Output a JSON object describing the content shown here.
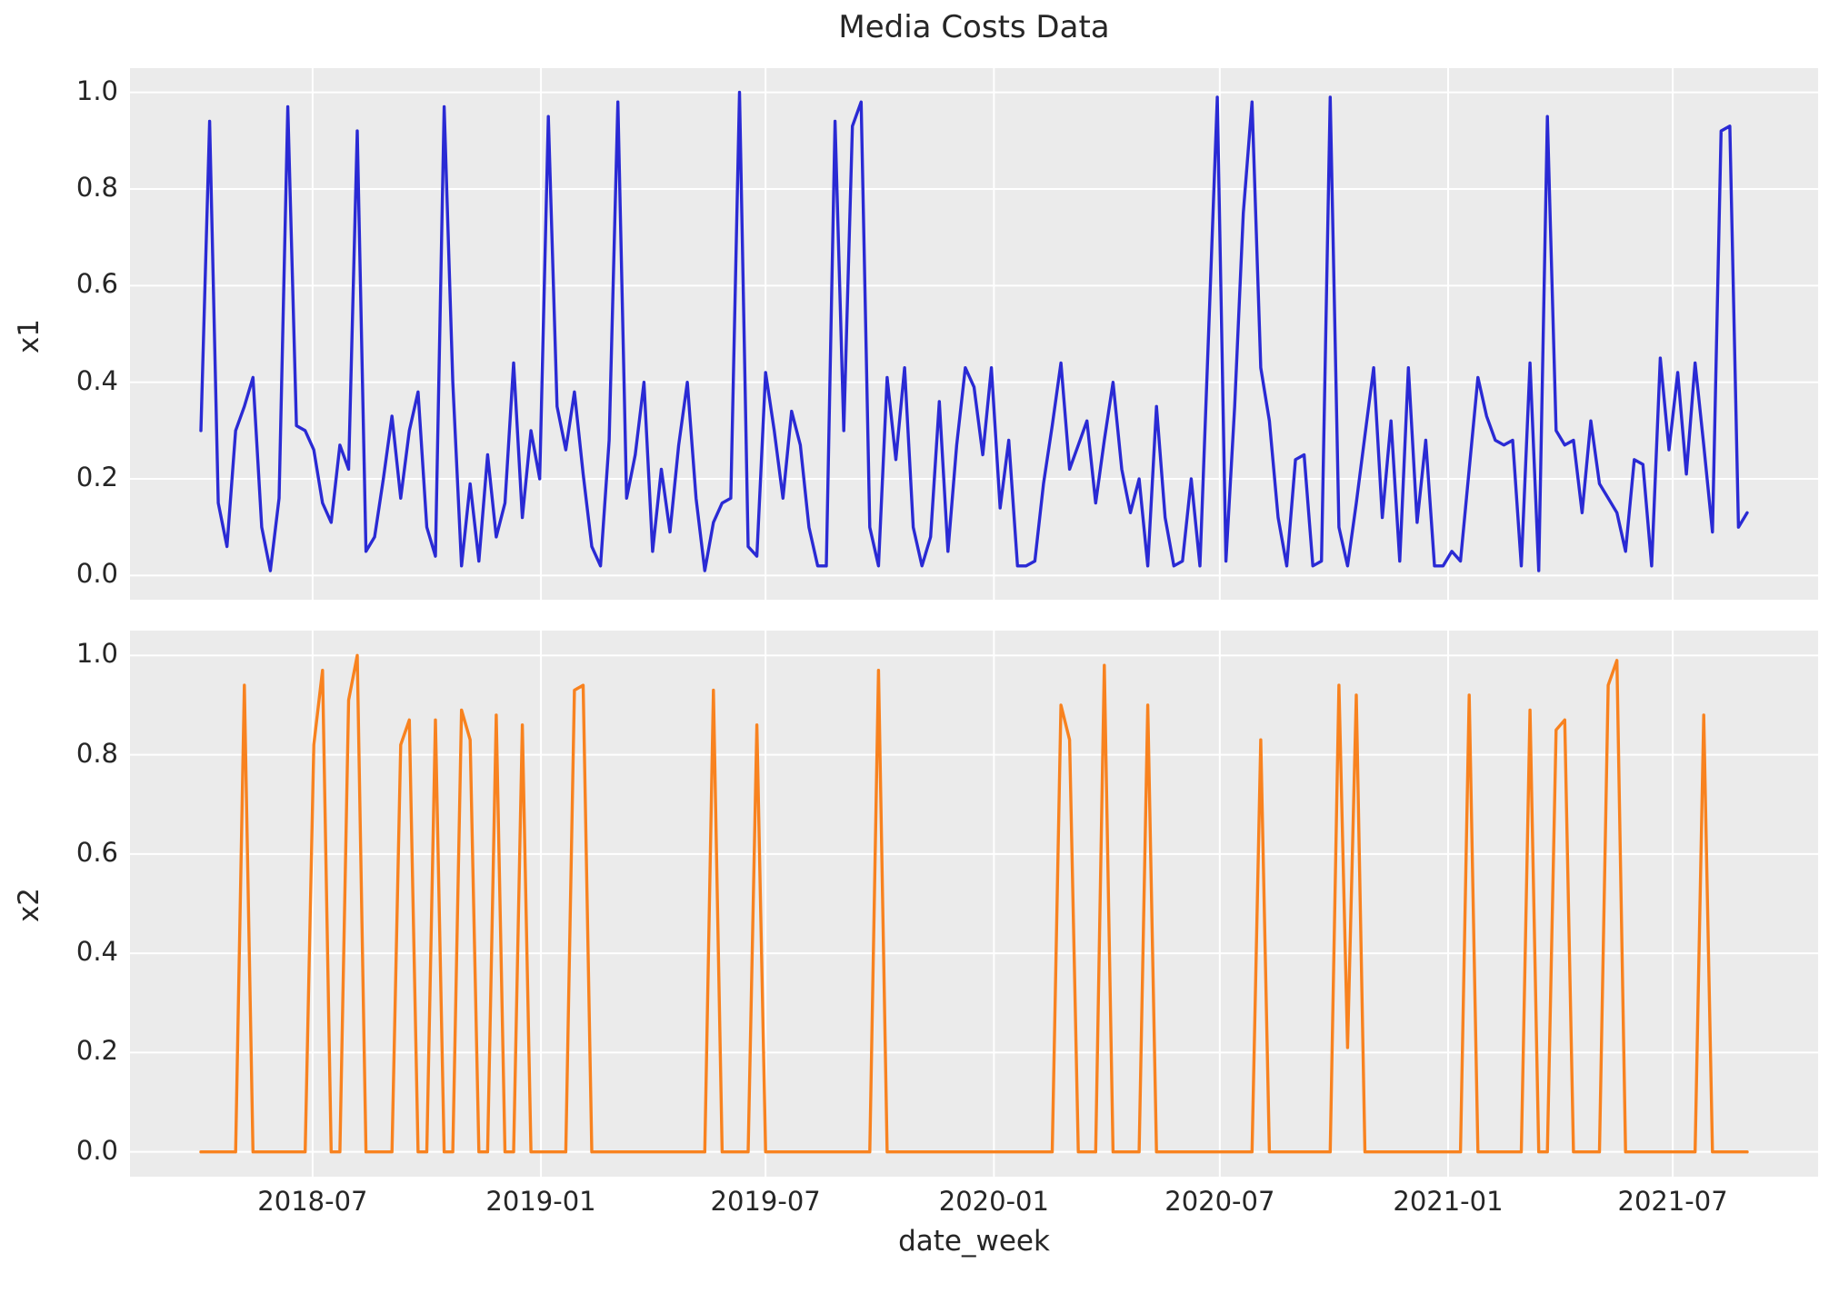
{
  "chart_data": {
    "type": "line",
    "title": "Media Costs Data",
    "xlabel": "date_week",
    "grid": true,
    "legend": "none",
    "background_color": "#ebebeb",
    "gridline_color": "#ffffff",
    "text_color": "#262626",
    "x_tick_labels": [
      "2018-07",
      "2019-01",
      "2019-07",
      "2020-01",
      "2020-07",
      "2021-01",
      "2021-07"
    ],
    "x_tick_week_positions": [
      12.86,
      39.14,
      65.0,
      91.29,
      117.29,
      143.57,
      169.43
    ],
    "y_tick_labels": [
      "0.0",
      "0.2",
      "0.4",
      "0.6",
      "0.8",
      "1.0"
    ],
    "y_tick_values": [
      0.0,
      0.2,
      0.4,
      0.6,
      0.8,
      1.0
    ],
    "ylim": [
      -0.05,
      1.05
    ],
    "n_points": 179,
    "x_unit": "weeks",
    "subplots": [
      {
        "ylabel": "x1",
        "color": "#2a2ad4",
        "series_key": "x1_values"
      },
      {
        "ylabel": "x2",
        "color": "#f8821f",
        "series_key": "x2_values"
      }
    ],
    "x1_values": [
      0.3,
      0.94,
      0.15,
      0.06,
      0.3,
      0.35,
      0.41,
      0.1,
      0.01,
      0.16,
      0.97,
      0.31,
      0.3,
      0.26,
      0.15,
      0.11,
      0.27,
      0.22,
      0.92,
      0.05,
      0.08,
      0.2,
      0.33,
      0.16,
      0.3,
      0.38,
      0.1,
      0.04,
      0.97,
      0.4,
      0.02,
      0.19,
      0.03,
      0.25,
      0.08,
      0.15,
      0.44,
      0.12,
      0.3,
      0.2,
      0.95,
      0.35,
      0.26,
      0.38,
      0.21,
      0.06,
      0.02,
      0.28,
      0.98,
      0.16,
      0.25,
      0.4,
      0.05,
      0.22,
      0.09,
      0.27,
      0.4,
      0.16,
      0.01,
      0.11,
      0.15,
      0.16,
      1.0,
      0.06,
      0.04,
      0.42,
      0.3,
      0.16,
      0.34,
      0.27,
      0.1,
      0.02,
      0.02,
      0.94,
      0.3,
      0.93,
      0.98,
      0.1,
      0.02,
      0.41,
      0.24,
      0.43,
      0.1,
      0.02,
      0.08,
      0.36,
      0.05,
      0.27,
      0.43,
      0.39,
      0.25,
      0.43,
      0.14,
      0.28,
      0.02,
      0.02,
      0.03,
      0.19,
      0.31,
      0.44,
      0.22,
      0.27,
      0.32,
      0.15,
      0.28,
      0.4,
      0.22,
      0.13,
      0.2,
      0.02,
      0.35,
      0.12,
      0.02,
      0.03,
      0.2,
      0.02,
      0.5,
      0.99,
      0.03,
      0.35,
      0.75,
      0.98,
      0.43,
      0.32,
      0.12,
      0.02,
      0.24,
      0.25,
      0.02,
      0.03,
      0.99,
      0.1,
      0.02,
      0.15,
      0.29,
      0.43,
      0.12,
      0.32,
      0.03,
      0.43,
      0.11,
      0.28,
      0.02,
      0.02,
      0.05,
      0.03,
      0.22,
      0.41,
      0.33,
      0.28,
      0.27,
      0.28,
      0.02,
      0.44,
      0.01,
      0.95,
      0.3,
      0.27,
      0.28,
      0.13,
      0.32,
      0.19,
      0.16,
      0.13,
      0.05,
      0.24,
      0.23,
      0.02,
      0.45,
      0.26,
      0.42,
      0.21,
      0.44,
      0.27,
      0.09,
      0.92,
      0.93,
      0.1,
      0.13
    ],
    "x2_values": [
      0,
      0,
      0,
      0,
      0,
      0.94,
      0,
      0,
      0,
      0,
      0,
      0,
      0,
      0.82,
      0.97,
      0,
      0,
      0.91,
      1.0,
      0,
      0,
      0,
      0,
      0.82,
      0.87,
      0,
      0,
      0.87,
      0,
      0,
      0.89,
      0.83,
      0,
      0,
      0.88,
      0,
      0,
      0.86,
      0,
      0,
      0,
      0,
      0,
      0.93,
      0.94,
      0,
      0,
      0,
      0,
      0,
      0,
      0,
      0,
      0,
      0,
      0,
      0,
      0,
      0,
      0.93,
      0,
      0,
      0,
      0,
      0.86,
      0,
      0,
      0,
      0,
      0,
      0,
      0,
      0,
      0,
      0,
      0,
      0,
      0,
      0.97,
      0,
      0,
      0,
      0,
      0,
      0,
      0,
      0,
      0,
      0,
      0,
      0,
      0,
      0,
      0,
      0,
      0,
      0,
      0,
      0,
      0.9,
      0.83,
      0,
      0,
      0,
      0.98,
      0,
      0,
      0,
      0,
      0.9,
      0,
      0,
      0,
      0,
      0,
      0,
      0,
      0,
      0,
      0,
      0,
      0,
      0.83,
      0,
      0,
      0,
      0,
      0,
      0,
      0,
      0,
      0.94,
      0.21,
      0.92,
      0,
      0,
      0,
      0,
      0,
      0,
      0,
      0,
      0,
      0,
      0,
      0,
      0.92,
      0,
      0,
      0,
      0,
      0,
      0,
      0.89,
      0,
      0,
      0.85,
      0.87,
      0,
      0,
      0,
      0,
      0.94,
      0.99,
      0,
      0,
      0,
      0,
      0,
      0,
      0,
      0,
      0,
      0.88,
      0,
      0,
      0,
      0,
      0
    ]
  }
}
